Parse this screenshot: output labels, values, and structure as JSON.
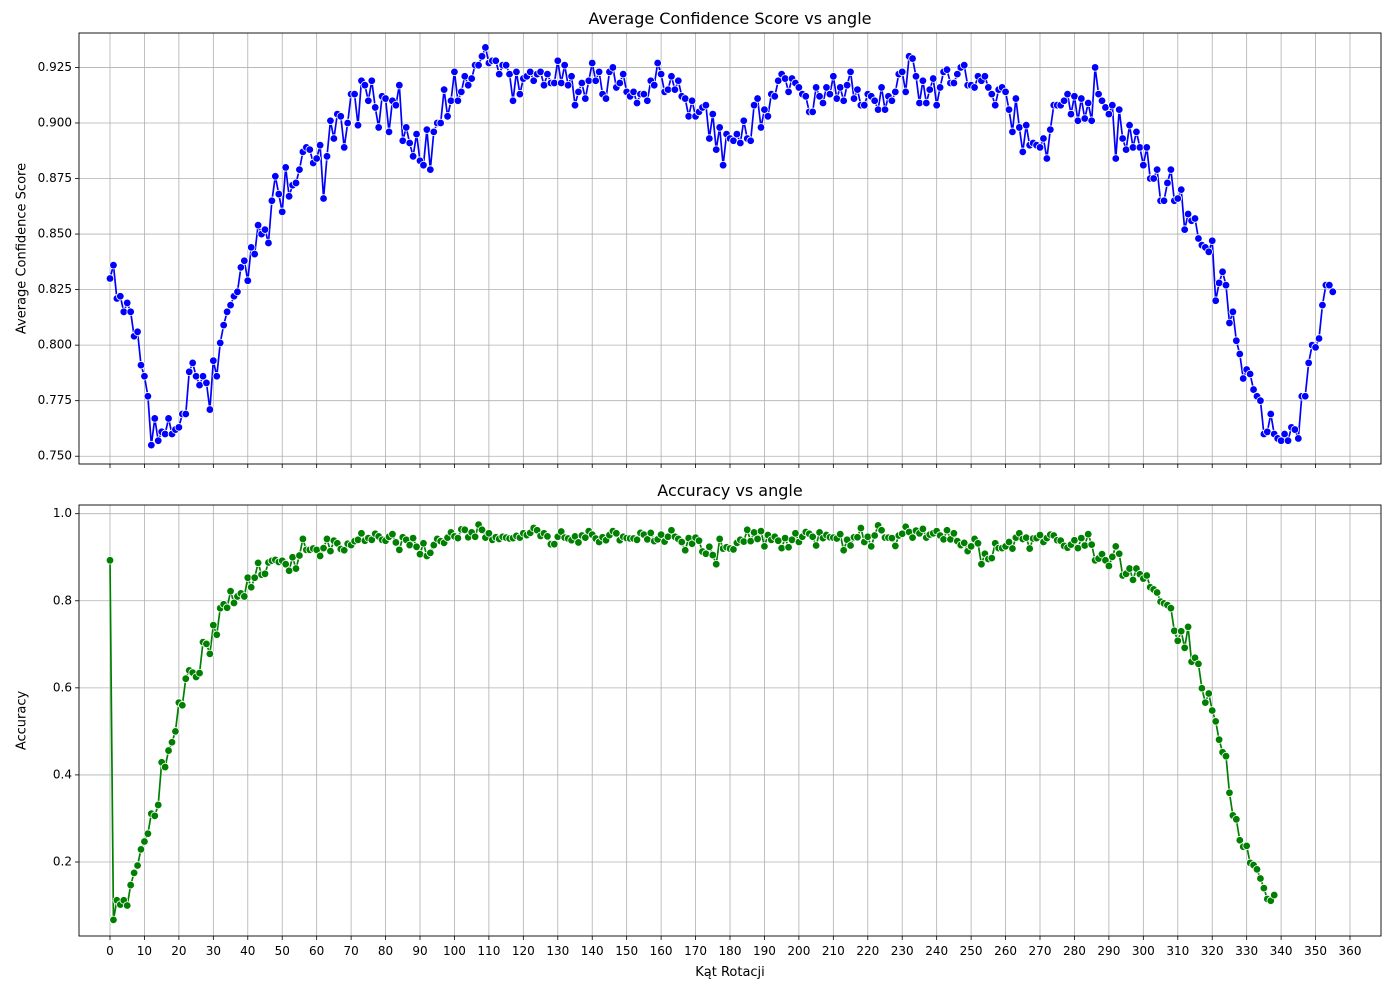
{
  "chart_data": [
    {
      "type": "line",
      "title": "Average Confidence Score vs angle",
      "xlabel": "",
      "ylabel": "Average Confidence Score",
      "xlim": [
        -9,
        369
      ],
      "ylim": [
        0.7465,
        0.9405
      ],
      "x_ticks": [
        0,
        10,
        20,
        30,
        40,
        50,
        60,
        70,
        80,
        90,
        100,
        110,
        120,
        130,
        140,
        150,
        160,
        170,
        180,
        190,
        200,
        210,
        220,
        230,
        240,
        250,
        260,
        270,
        280,
        290,
        300,
        310,
        320,
        330,
        340,
        350,
        360
      ],
      "y_ticks": [
        0.75,
        0.775,
        0.8,
        0.825,
        0.85,
        0.875,
        0.9,
        0.925
      ],
      "y_tick_labels": [
        "0.750",
        "0.775",
        "0.800",
        "0.825",
        "0.850",
        "0.875",
        "0.900",
        "0.925"
      ],
      "grid": true,
      "marker": "circle",
      "color": "#0000ff",
      "x_start": 0,
      "x_step": 1,
      "values": [
        0.83,
        0.836,
        0.821,
        0.822,
        0.815,
        0.819,
        0.815,
        0.804,
        0.806,
        0.791,
        0.786,
        0.777,
        0.755,
        0.767,
        0.757,
        0.761,
        0.76,
        0.767,
        0.76,
        0.762,
        0.763,
        0.769,
        0.769,
        0.788,
        0.792,
        0.786,
        0.782,
        0.786,
        0.783,
        0.771,
        0.793,
        0.786,
        0.801,
        0.809,
        0.815,
        0.818,
        0.822,
        0.824,
        0.835,
        0.838,
        0.829,
        0.844,
        0.841,
        0.854,
        0.85,
        0.852,
        0.846,
        0.865,
        0.876,
        0.868,
        0.86,
        0.88,
        0.867,
        0.872,
        0.873,
        0.879,
        0.887,
        0.889,
        0.888,
        0.882,
        0.884,
        0.89,
        0.866,
        0.885,
        0.901,
        0.893,
        0.904,
        0.903,
        0.889,
        0.9,
        0.913,
        0.913,
        0.899,
        0.919,
        0.917,
        0.91,
        0.919,
        0.907,
        0.898,
        0.912,
        0.911,
        0.896,
        0.91,
        0.908,
        0.917,
        0.892,
        0.898,
        0.891,
        0.885,
        0.895,
        0.883,
        0.881,
        0.897,
        0.879,
        0.896,
        0.9,
        0.9,
        0.915,
        0.903,
        0.91,
        0.923,
        0.91,
        0.914,
        0.921,
        0.917,
        0.92,
        0.926,
        0.926,
        0.93,
        0.934,
        0.927,
        0.928,
        0.928,
        0.922,
        0.926,
        0.926,
        0.922,
        0.91,
        0.923,
        0.913,
        0.92,
        0.921,
        0.923,
        0.919,
        0.922,
        0.923,
        0.917,
        0.922,
        0.918,
        0.918,
        0.928,
        0.918,
        0.926,
        0.917,
        0.921,
        0.908,
        0.914,
        0.918,
        0.911,
        0.919,
        0.927,
        0.919,
        0.923,
        0.913,
        0.911,
        0.923,
        0.925,
        0.916,
        0.918,
        0.922,
        0.914,
        0.912,
        0.914,
        0.909,
        0.913,
        0.913,
        0.91,
        0.919,
        0.917,
        0.927,
        0.922,
        0.914,
        0.915,
        0.921,
        0.915,
        0.919,
        0.912,
        0.911,
        0.903,
        0.91,
        0.903,
        0.905,
        0.907,
        0.908,
        0.893,
        0.904,
        0.888,
        0.898,
        0.881,
        0.895,
        0.893,
        0.892,
        0.895,
        0.891,
        0.901,
        0.893,
        0.892,
        0.908,
        0.911,
        0.898,
        0.906,
        0.903,
        0.913,
        0.912,
        0.919,
        0.922,
        0.92,
        0.914,
        0.92,
        0.918,
        0.916,
        0.913,
        0.912,
        0.905,
        0.905,
        0.916,
        0.912,
        0.909,
        0.916,
        0.913,
        0.921,
        0.911,
        0.916,
        0.91,
        0.917,
        0.923,
        0.911,
        0.915,
        0.908,
        0.908,
        0.913,
        0.912,
        0.91,
        0.906,
        0.916,
        0.906,
        0.912,
        0.91,
        0.914,
        0.922,
        0.923,
        0.914,
        0.93,
        0.929,
        0.921,
        0.909,
        0.919,
        0.909,
        0.915,
        0.92,
        0.908,
        0.916,
        0.923,
        0.924,
        0.918,
        0.918,
        0.922,
        0.925,
        0.926,
        0.917,
        0.917,
        0.916,
        0.921,
        0.919,
        0.921,
        0.916,
        0.913,
        0.908,
        0.915,
        0.916,
        0.914,
        0.906,
        0.896,
        0.911,
        0.898,
        0.887,
        0.899,
        0.89,
        0.891,
        0.89,
        0.889,
        0.893,
        0.884,
        0.897,
        0.908,
        0.908,
        0.908,
        0.91,
        0.913,
        0.904,
        0.912,
        0.901,
        0.911,
        0.902,
        0.909,
        0.901,
        0.925,
        0.913,
        0.91,
        0.907,
        0.904,
        0.908,
        0.884,
        0.906,
        0.893,
        0.888,
        0.899,
        0.889,
        0.896,
        0.889,
        0.881,
        0.889,
        0.875,
        0.875,
        0.879,
        0.865,
        0.865,
        0.873,
        0.879,
        0.865,
        0.866,
        0.87,
        0.852,
        0.859,
        0.856,
        0.857,
        0.848,
        0.845,
        0.844,
        0.842,
        0.847,
        0.82,
        0.828,
        0.833,
        0.827,
        0.81,
        0.815,
        0.802,
        0.796,
        0.785,
        0.789,
        0.787,
        0.78,
        0.777,
        0.775,
        0.76,
        0.761,
        0.769,
        0.76,
        0.758,
        0.757,
        0.76,
        0.757,
        0.763,
        0.762,
        0.758,
        0.777,
        0.777,
        0.792,
        0.8,
        0.799,
        0.803,
        0.818,
        0.827,
        0.827,
        0.824
      ]
    },
    {
      "type": "line",
      "title": "Accuracy vs angle",
      "xlabel": "Kąt Rotacji",
      "ylabel": "Accuracy",
      "xlim": [
        -9,
        369
      ],
      "ylim": [
        0.03,
        1.02
      ],
      "x_ticks": [
        0,
        10,
        20,
        30,
        40,
        50,
        60,
        70,
        80,
        90,
        100,
        110,
        120,
        130,
        140,
        150,
        160,
        170,
        180,
        190,
        200,
        210,
        220,
        230,
        240,
        250,
        260,
        270,
        280,
        290,
        300,
        310,
        320,
        330,
        340,
        350,
        360
      ],
      "y_ticks": [
        0.2,
        0.4,
        0.6,
        0.8,
        1.0
      ],
      "y_tick_labels": [
        "0.2",
        "0.4",
        "0.6",
        "0.8",
        "1.0"
      ],
      "grid": true,
      "marker": "circle",
      "color": "#008000",
      "x_start": 0,
      "x_step": 1,
      "values": [
        0.893,
        0.067,
        0.112,
        0.102,
        0.112,
        0.1,
        0.147,
        0.175,
        0.192,
        0.229,
        0.247,
        0.265,
        0.311,
        0.306,
        0.331,
        0.429,
        0.418,
        0.456,
        0.475,
        0.5,
        0.566,
        0.56,
        0.621,
        0.64,
        0.635,
        0.625,
        0.634,
        0.705,
        0.701,
        0.678,
        0.744,
        0.722,
        0.783,
        0.792,
        0.784,
        0.822,
        0.795,
        0.81,
        0.817,
        0.81,
        0.853,
        0.831,
        0.853,
        0.887,
        0.86,
        0.862,
        0.888,
        0.892,
        0.894,
        0.889,
        0.892,
        0.884,
        0.869,
        0.9,
        0.874,
        0.904,
        0.942,
        0.917,
        0.917,
        0.92,
        0.917,
        0.903,
        0.921,
        0.942,
        0.914,
        0.938,
        0.932,
        0.919,
        0.916,
        0.931,
        0.928,
        0.937,
        0.94,
        0.955,
        0.938,
        0.944,
        0.94,
        0.954,
        0.948,
        0.94,
        0.938,
        0.947,
        0.953,
        0.934,
        0.917,
        0.946,
        0.94,
        0.928,
        0.944,
        0.924,
        0.907,
        0.932,
        0.903,
        0.91,
        0.928,
        0.942,
        0.937,
        0.933,
        0.945,
        0.957,
        0.948,
        0.944,
        0.964,
        0.963,
        0.946,
        0.957,
        0.947,
        0.975,
        0.963,
        0.945,
        0.955,
        0.94,
        0.946,
        0.942,
        0.947,
        0.945,
        0.943,
        0.944,
        0.949,
        0.945,
        0.955,
        0.951,
        0.956,
        0.967,
        0.962,
        0.949,
        0.955,
        0.948,
        0.93,
        0.93,
        0.947,
        0.959,
        0.945,
        0.943,
        0.939,
        0.948,
        0.934,
        0.95,
        0.945,
        0.96,
        0.952,
        0.943,
        0.935,
        0.946,
        0.939,
        0.951,
        0.96,
        0.955,
        0.939,
        0.947,
        0.944,
        0.943,
        0.943,
        0.94,
        0.956,
        0.952,
        0.941,
        0.956,
        0.937,
        0.941,
        0.952,
        0.936,
        0.947,
        0.962,
        0.947,
        0.942,
        0.935,
        0.916,
        0.944,
        0.931,
        0.945,
        0.938,
        0.913,
        0.908,
        0.924,
        0.905,
        0.884,
        0.942,
        0.92,
        0.923,
        0.92,
        0.918,
        0.933,
        0.94,
        0.936,
        0.963,
        0.937,
        0.957,
        0.942,
        0.96,
        0.925,
        0.951,
        0.94,
        0.947,
        0.938,
        0.921,
        0.944,
        0.923,
        0.94,
        0.955,
        0.935,
        0.947,
        0.958,
        0.954,
        0.947,
        0.927,
        0.957,
        0.944,
        0.951,
        0.946,
        0.945,
        0.943,
        0.953,
        0.916,
        0.94,
        0.927,
        0.946,
        0.946,
        0.967,
        0.935,
        0.947,
        0.925,
        0.95,
        0.973,
        0.962,
        0.945,
        0.945,
        0.944,
        0.926,
        0.95,
        0.954,
        0.97,
        0.958,
        0.945,
        0.961,
        0.955,
        0.965,
        0.945,
        0.952,
        0.955,
        0.96,
        0.95,
        0.941,
        0.962,
        0.941,
        0.955,
        0.937,
        0.928,
        0.933,
        0.914,
        0.925,
        0.942,
        0.932,
        0.884,
        0.908,
        0.896,
        0.898,
        0.932,
        0.921,
        0.921,
        0.925,
        0.935,
        0.92,
        0.945,
        0.955,
        0.942,
        0.945,
        0.92,
        0.943,
        0.944,
        0.951,
        0.935,
        0.944,
        0.952,
        0.95,
        0.939,
        0.938,
        0.926,
        0.922,
        0.929,
        0.939,
        0.921,
        0.944,
        0.927,
        0.953,
        0.929,
        0.893,
        0.897,
        0.907,
        0.893,
        0.88,
        0.901,
        0.925,
        0.908,
        0.858,
        0.862,
        0.874,
        0.848,
        0.874,
        0.861,
        0.851,
        0.858,
        0.831,
        0.826,
        0.819,
        0.798,
        0.794,
        0.79,
        0.783,
        0.731,
        0.708,
        0.73,
        0.692,
        0.74,
        0.66,
        0.669,
        0.655,
        0.599,
        0.566,
        0.587,
        0.548,
        0.523,
        0.481,
        0.452,
        0.443,
        0.359,
        0.307,
        0.298,
        0.25,
        0.235,
        0.237,
        0.198,
        0.193,
        0.183,
        0.162,
        0.14,
        0.115,
        0.111,
        0.124
      ]
    }
  ]
}
